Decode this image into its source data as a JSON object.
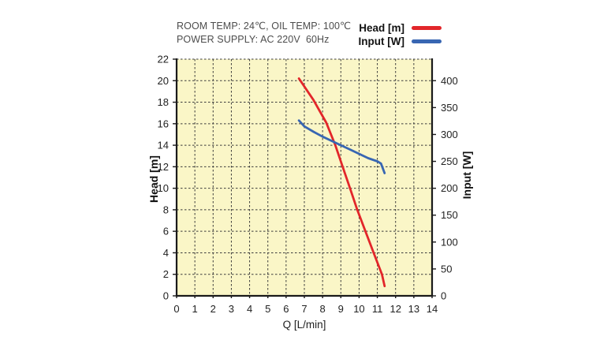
{
  "header": {
    "line1": "ROOM TEMP: 24℃, OIL TEMP: 100℃",
    "line2": "POWER SUPPLY: AC 220V  60Hz"
  },
  "legend": [
    {
      "label": "Head [m]",
      "color": "#e2262a"
    },
    {
      "label": "Input [W]",
      "color": "#3866b2"
    }
  ],
  "chart_data": {
    "type": "line",
    "title": "",
    "plot_bg": "#faf6c7",
    "grid": {
      "style": "dashed",
      "color": "#3b3b3b",
      "vertical_step": 1,
      "horizontal_step": 2
    },
    "axis_color": "#1a1a1a",
    "x_axis": {
      "label": "Q [L/min]",
      "min": 0,
      "max": 14,
      "ticks": [
        0,
        1,
        2,
        3,
        4,
        5,
        6,
        7,
        8,
        9,
        10,
        11,
        12,
        13,
        14
      ]
    },
    "y_left": {
      "label": "Head [m]",
      "min": 0,
      "max": 22,
      "ticks": [
        0,
        2,
        4,
        6,
        8,
        10,
        12,
        14,
        16,
        18,
        20,
        22
      ]
    },
    "y_right": {
      "label": "Input [W]",
      "min": 0,
      "max": 440,
      "ticks": [
        0,
        50,
        100,
        150,
        200,
        250,
        300,
        350,
        400
      ]
    },
    "series": [
      {
        "name": "Head [m]",
        "color": "#e2262a",
        "axis": "left",
        "points": [
          [
            6.7,
            20.2
          ],
          [
            7.5,
            18.2
          ],
          [
            8.2,
            16.1
          ],
          [
            8.7,
            14.0
          ],
          [
            9.1,
            12.0
          ],
          [
            9.5,
            10.0
          ],
          [
            9.9,
            8.0
          ],
          [
            10.35,
            6.0
          ],
          [
            10.8,
            4.0
          ],
          [
            11.25,
            2.0
          ],
          [
            11.4,
            0.9
          ]
        ]
      },
      {
        "name": "Input [W]",
        "color": "#3866b2",
        "axis": "right",
        "points": [
          [
            6.7,
            326
          ],
          [
            7.0,
            315
          ],
          [
            7.5,
            305
          ],
          [
            8.0,
            296
          ],
          [
            8.5,
            288
          ],
          [
            9.0,
            280
          ],
          [
            9.5,
            272
          ],
          [
            10.0,
            264
          ],
          [
            10.5,
            256
          ],
          [
            11.0,
            250
          ],
          [
            11.2,
            246
          ],
          [
            11.4,
            228
          ]
        ]
      }
    ]
  }
}
